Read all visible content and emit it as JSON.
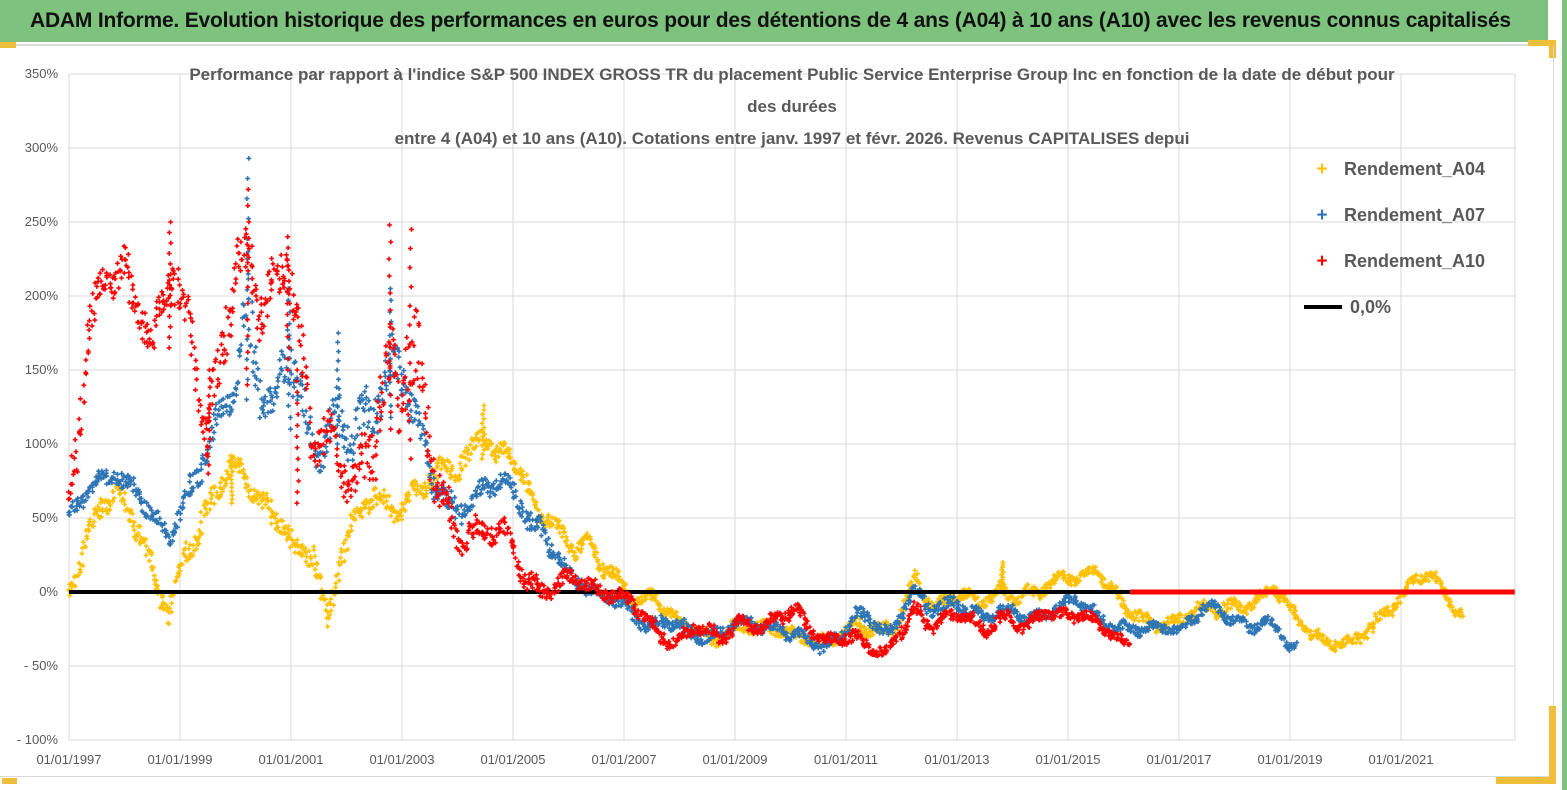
{
  "page": {
    "header": {
      "title": "ADAM Informe. Evolution historique des performances en euros pour des détentions de 4 ans (A04) à 10 ans (A10) avec les revenus connus capitalisés",
      "bg_color": "#7DC37D",
      "accent_color": "#EFBE3B"
    }
  },
  "chart_data": {
    "type": "scatter",
    "title_lines": [
      "Performance par rapport à l'indice S&P 500 INDEX GROSS TR  du placement Public Service Enterprise Group Inc en fonction de la date de début pour",
      "des durées",
      "entre 4 (A04) et 10 ans (A10). Cotations entre janv. 1997 et févr. 2026. Revenus CAPITALISES depui"
    ],
    "x_axis": {
      "labels": [
        "01/01/1997",
        "01/01/1999",
        "01/01/2001",
        "01/01/2003",
        "01/01/2005",
        "01/01/2007",
        "01/01/2009",
        "01/01/2011",
        "01/01/2013",
        "01/01/2015",
        "01/01/2017",
        "01/01/2019",
        "01/01/2021"
      ],
      "tick_interval_years": 2,
      "max_t": 26.05
    },
    "y_axis": {
      "labels": [
        "350%",
        "300%",
        "250%",
        "200%",
        "150%",
        "100%",
        "50%",
        "0%",
        "- 50%",
        "- 100%"
      ],
      "max": 350,
      "min": -100,
      "step": 50,
      "unit": "%"
    },
    "grid_color": "#D9D9D9",
    "text_color": "#595959",
    "legend": {
      "zero_label": "0,0%"
    },
    "zero_line": {
      "value": 0,
      "color": "#000000",
      "black_span_t": [
        0,
        19.12
      ],
      "red_overlay_color": "#FF0000",
      "red_span_t": [
        19.12,
        26.05
      ]
    },
    "series": [
      {
        "name": "Rendement_A04",
        "color": "#FFC000",
        "marker": "plus",
        "end_t": 25.12,
        "trend": [
          [
            0.0,
            0,
            9
          ],
          [
            0.3,
            25,
            13
          ],
          [
            0.6,
            50,
            15
          ],
          [
            1.0,
            64,
            15
          ],
          [
            1.3,
            45,
            15
          ],
          [
            1.6,
            8,
            15
          ],
          [
            1.8,
            -14,
            11
          ],
          [
            2.1,
            35,
            15
          ],
          [
            2.5,
            60,
            15
          ],
          [
            2.9,
            77,
            13
          ],
          [
            3.2,
            70,
            15
          ],
          [
            3.5,
            56,
            13
          ],
          [
            3.8,
            46,
            15
          ],
          [
            4.1,
            20,
            15
          ],
          [
            4.4,
            32,
            14
          ],
          [
            4.65,
            -10,
            16
          ],
          [
            4.9,
            35,
            15
          ],
          [
            5.2,
            55,
            15
          ],
          [
            5.5,
            64,
            14
          ],
          [
            5.8,
            56,
            14
          ],
          [
            6.1,
            56,
            14
          ],
          [
            6.5,
            66,
            14
          ],
          [
            6.9,
            85,
            14
          ],
          [
            7.2,
            96,
            14
          ],
          [
            7.45,
            112,
            13
          ],
          [
            7.7,
            92,
            12
          ],
          [
            7.9,
            102,
            10
          ],
          [
            8.2,
            82,
            12
          ],
          [
            8.5,
            56,
            12
          ],
          [
            8.8,
            38,
            10
          ],
          [
            9.1,
            23,
            10
          ],
          [
            9.35,
            32,
            8
          ],
          [
            9.6,
            16,
            10
          ],
          [
            9.9,
            5,
            8
          ],
          [
            10.2,
            -8,
            8
          ],
          [
            10.55,
            4,
            9
          ],
          [
            10.9,
            -14,
            8
          ],
          [
            11.2,
            -24,
            8
          ],
          [
            11.6,
            -32,
            8
          ],
          [
            12.0,
            -26,
            8
          ],
          [
            12.4,
            -30,
            8
          ],
          [
            12.8,
            -26,
            8
          ],
          [
            13.2,
            -28,
            8
          ],
          [
            13.6,
            -33,
            7
          ],
          [
            14.0,
            -23,
            8
          ],
          [
            14.2,
            -16,
            8
          ],
          [
            14.6,
            -28,
            8
          ],
          [
            14.9,
            -30,
            8
          ],
          [
            15.25,
            8,
            8
          ],
          [
            15.6,
            -14,
            8
          ],
          [
            16.0,
            -4,
            8
          ],
          [
            16.4,
            -3,
            8
          ],
          [
            16.8,
            8,
            9
          ],
          [
            17.1,
            -4,
            8
          ],
          [
            17.5,
            2,
            8
          ],
          [
            17.9,
            10,
            7
          ],
          [
            18.2,
            4,
            7
          ],
          [
            18.5,
            10,
            7
          ],
          [
            18.8,
            1,
            7
          ],
          [
            19.1,
            -10,
            8
          ],
          [
            19.5,
            -22,
            8
          ],
          [
            19.9,
            -16,
            8
          ],
          [
            20.3,
            -8,
            8
          ],
          [
            20.7,
            -16,
            8
          ],
          [
            21.1,
            -13,
            8
          ],
          [
            21.5,
            -6,
            8
          ],
          [
            21.7,
            1,
            6
          ],
          [
            22.0,
            -14,
            8
          ],
          [
            22.4,
            -24,
            8
          ],
          [
            22.8,
            -30,
            8
          ],
          [
            23.1,
            -34,
            7
          ],
          [
            23.4,
            -25,
            8
          ],
          [
            23.7,
            -13,
            8
          ],
          [
            24.0,
            -8,
            8
          ],
          [
            24.3,
            4,
            8
          ],
          [
            24.6,
            8,
            7
          ],
          [
            24.9,
            -5,
            8
          ],
          [
            25.12,
            -16,
            6
          ]
        ],
        "spikes": [
          [
            7.46,
            90,
            126
          ],
          [
            16.82,
            0,
            20
          ],
          [
            2.92,
            60,
            92
          ]
        ]
      },
      {
        "name": "Rendement_A07",
        "color": "#2E75B6",
        "marker": "plus",
        "end_t": 22.12,
        "trend": [
          [
            0.0,
            48,
            9
          ],
          [
            0.4,
            62,
            10
          ],
          [
            0.8,
            80,
            12
          ],
          [
            1.2,
            70,
            12
          ],
          [
            1.5,
            52,
            12
          ],
          [
            1.8,
            42,
            10
          ],
          [
            2.2,
            80,
            15
          ],
          [
            2.6,
            105,
            15
          ],
          [
            3.0,
            130,
            20
          ],
          [
            3.2,
            175,
            60
          ],
          [
            3.45,
            130,
            25
          ],
          [
            3.7,
            112,
            20
          ],
          [
            3.95,
            155,
            40
          ],
          [
            4.2,
            128,
            28
          ],
          [
            4.5,
            108,
            24
          ],
          [
            4.8,
            132,
            28
          ],
          [
            5.1,
            108,
            28
          ],
          [
            5.4,
            128,
            32
          ],
          [
            5.75,
            158,
            42
          ],
          [
            6.05,
            128,
            32
          ],
          [
            6.3,
            92,
            24
          ],
          [
            6.6,
            66,
            18
          ],
          [
            7.0,
            55,
            14
          ],
          [
            7.4,
            66,
            14
          ],
          [
            7.8,
            84,
            10
          ],
          [
            8.1,
            70,
            12
          ],
          [
            8.4,
            46,
            14
          ],
          [
            8.7,
            26,
            10
          ],
          [
            9.0,
            8,
            10
          ],
          [
            9.3,
            2,
            9
          ],
          [
            9.6,
            -8,
            8
          ],
          [
            10.0,
            -10,
            9
          ],
          [
            10.4,
            -18,
            8
          ],
          [
            10.8,
            -16,
            8
          ],
          [
            11.2,
            -26,
            8
          ],
          [
            11.6,
            -28,
            8
          ],
          [
            12.0,
            -25,
            8
          ],
          [
            12.4,
            -28,
            8
          ],
          [
            12.8,
            -24,
            8
          ],
          [
            13.2,
            -30,
            8
          ],
          [
            13.55,
            -36,
            7
          ],
          [
            13.9,
            -25,
            8
          ],
          [
            14.15,
            -10,
            8
          ],
          [
            14.5,
            -22,
            8
          ],
          [
            14.8,
            -32,
            7
          ],
          [
            15.2,
            0,
            8
          ],
          [
            15.5,
            -16,
            8
          ],
          [
            15.8,
            -14,
            8
          ],
          [
            16.1,
            -8,
            8
          ],
          [
            16.5,
            -13,
            7
          ],
          [
            16.9,
            -10,
            7
          ],
          [
            17.3,
            -16,
            7
          ],
          [
            17.7,
            -12,
            7
          ],
          [
            18.1,
            -10,
            7
          ],
          [
            18.5,
            -18,
            7
          ],
          [
            18.9,
            -24,
            7
          ],
          [
            19.3,
            -26,
            7
          ],
          [
            19.7,
            -19,
            7
          ],
          [
            20.1,
            -20,
            7
          ],
          [
            20.5,
            -11,
            7
          ],
          [
            20.9,
            -18,
            7
          ],
          [
            21.3,
            -27,
            7
          ],
          [
            21.6,
            -24,
            7
          ],
          [
            22.0,
            -37,
            6
          ],
          [
            22.12,
            -35,
            5
          ]
        ],
        "spikes": [
          [
            3.22,
            130,
            293
          ],
          [
            3.97,
            110,
            205
          ],
          [
            5.78,
            110,
            205
          ],
          [
            4.85,
            100,
            175
          ]
        ]
      },
      {
        "name": "Rendement_A10",
        "color": "#FF0000",
        "marker": "plus",
        "end_t": 19.12,
        "trend": [
          [
            0.0,
            70,
            38
          ],
          [
            0.3,
            150,
            30
          ],
          [
            0.6,
            195,
            25
          ],
          [
            1.0,
            205,
            28
          ],
          [
            1.3,
            185,
            28
          ],
          [
            1.5,
            155,
            20
          ],
          [
            1.8,
            215,
            32
          ],
          [
            2.2,
            195,
            25
          ],
          [
            2.5,
            118,
            32
          ],
          [
            2.8,
            185,
            35
          ],
          [
            3.05,
            215,
            32
          ],
          [
            3.25,
            230,
            38
          ],
          [
            3.5,
            185,
            35
          ],
          [
            3.9,
            210,
            28
          ],
          [
            4.1,
            150,
            40
          ],
          [
            4.4,
            95,
            25
          ],
          [
            4.7,
            115,
            25
          ],
          [
            5.0,
            85,
            25
          ],
          [
            5.2,
            72,
            22
          ],
          [
            5.45,
            120,
            55
          ],
          [
            5.75,
            180,
            55
          ],
          [
            6.1,
            170,
            65
          ],
          [
            6.35,
            115,
            55
          ],
          [
            6.6,
            58,
            28
          ],
          [
            7.0,
            35,
            18
          ],
          [
            7.5,
            35,
            14
          ],
          [
            7.9,
            42,
            12
          ],
          [
            8.2,
            20,
            14
          ],
          [
            8.5,
            6,
            10
          ],
          [
            8.8,
            5,
            10
          ],
          [
            9.1,
            12,
            9
          ],
          [
            9.4,
            4,
            9
          ],
          [
            9.7,
            -5,
            9
          ],
          [
            10.2,
            -14,
            9
          ],
          [
            10.6,
            -26,
            9
          ],
          [
            11.0,
            -33,
            8
          ],
          [
            11.3,
            -20,
            9
          ],
          [
            11.7,
            -25,
            9
          ],
          [
            12.1,
            -20,
            9
          ],
          [
            12.5,
            -30,
            8
          ],
          [
            12.8,
            -18,
            8
          ],
          [
            13.1,
            -15,
            8
          ],
          [
            13.4,
            -30,
            8
          ],
          [
            13.65,
            -36,
            7
          ],
          [
            14.0,
            -26,
            8
          ],
          [
            14.2,
            -25,
            8
          ],
          [
            14.7,
            -42,
            6
          ],
          [
            15.25,
            -10,
            8
          ],
          [
            15.55,
            -25,
            8
          ],
          [
            15.9,
            -22,
            8
          ],
          [
            16.2,
            -20,
            8
          ],
          [
            16.5,
            -26,
            7
          ],
          [
            16.8,
            -15,
            8
          ],
          [
            17.2,
            -23,
            7
          ],
          [
            17.6,
            -8,
            7
          ],
          [
            18.0,
            -15,
            7
          ],
          [
            18.35,
            -20,
            7
          ],
          [
            18.7,
            -28,
            7
          ],
          [
            19.0,
            -36,
            6
          ],
          [
            19.12,
            -38,
            5
          ]
        ],
        "spikes": [
          [
            1.82,
            165,
            250
          ],
          [
            3.22,
            140,
            272
          ],
          [
            3.95,
            150,
            240
          ],
          [
            5.78,
            110,
            248
          ],
          [
            6.15,
            90,
            245
          ],
          [
            2.52,
            80,
            150
          ],
          [
            4.12,
            60,
            150
          ]
        ]
      }
    ]
  }
}
